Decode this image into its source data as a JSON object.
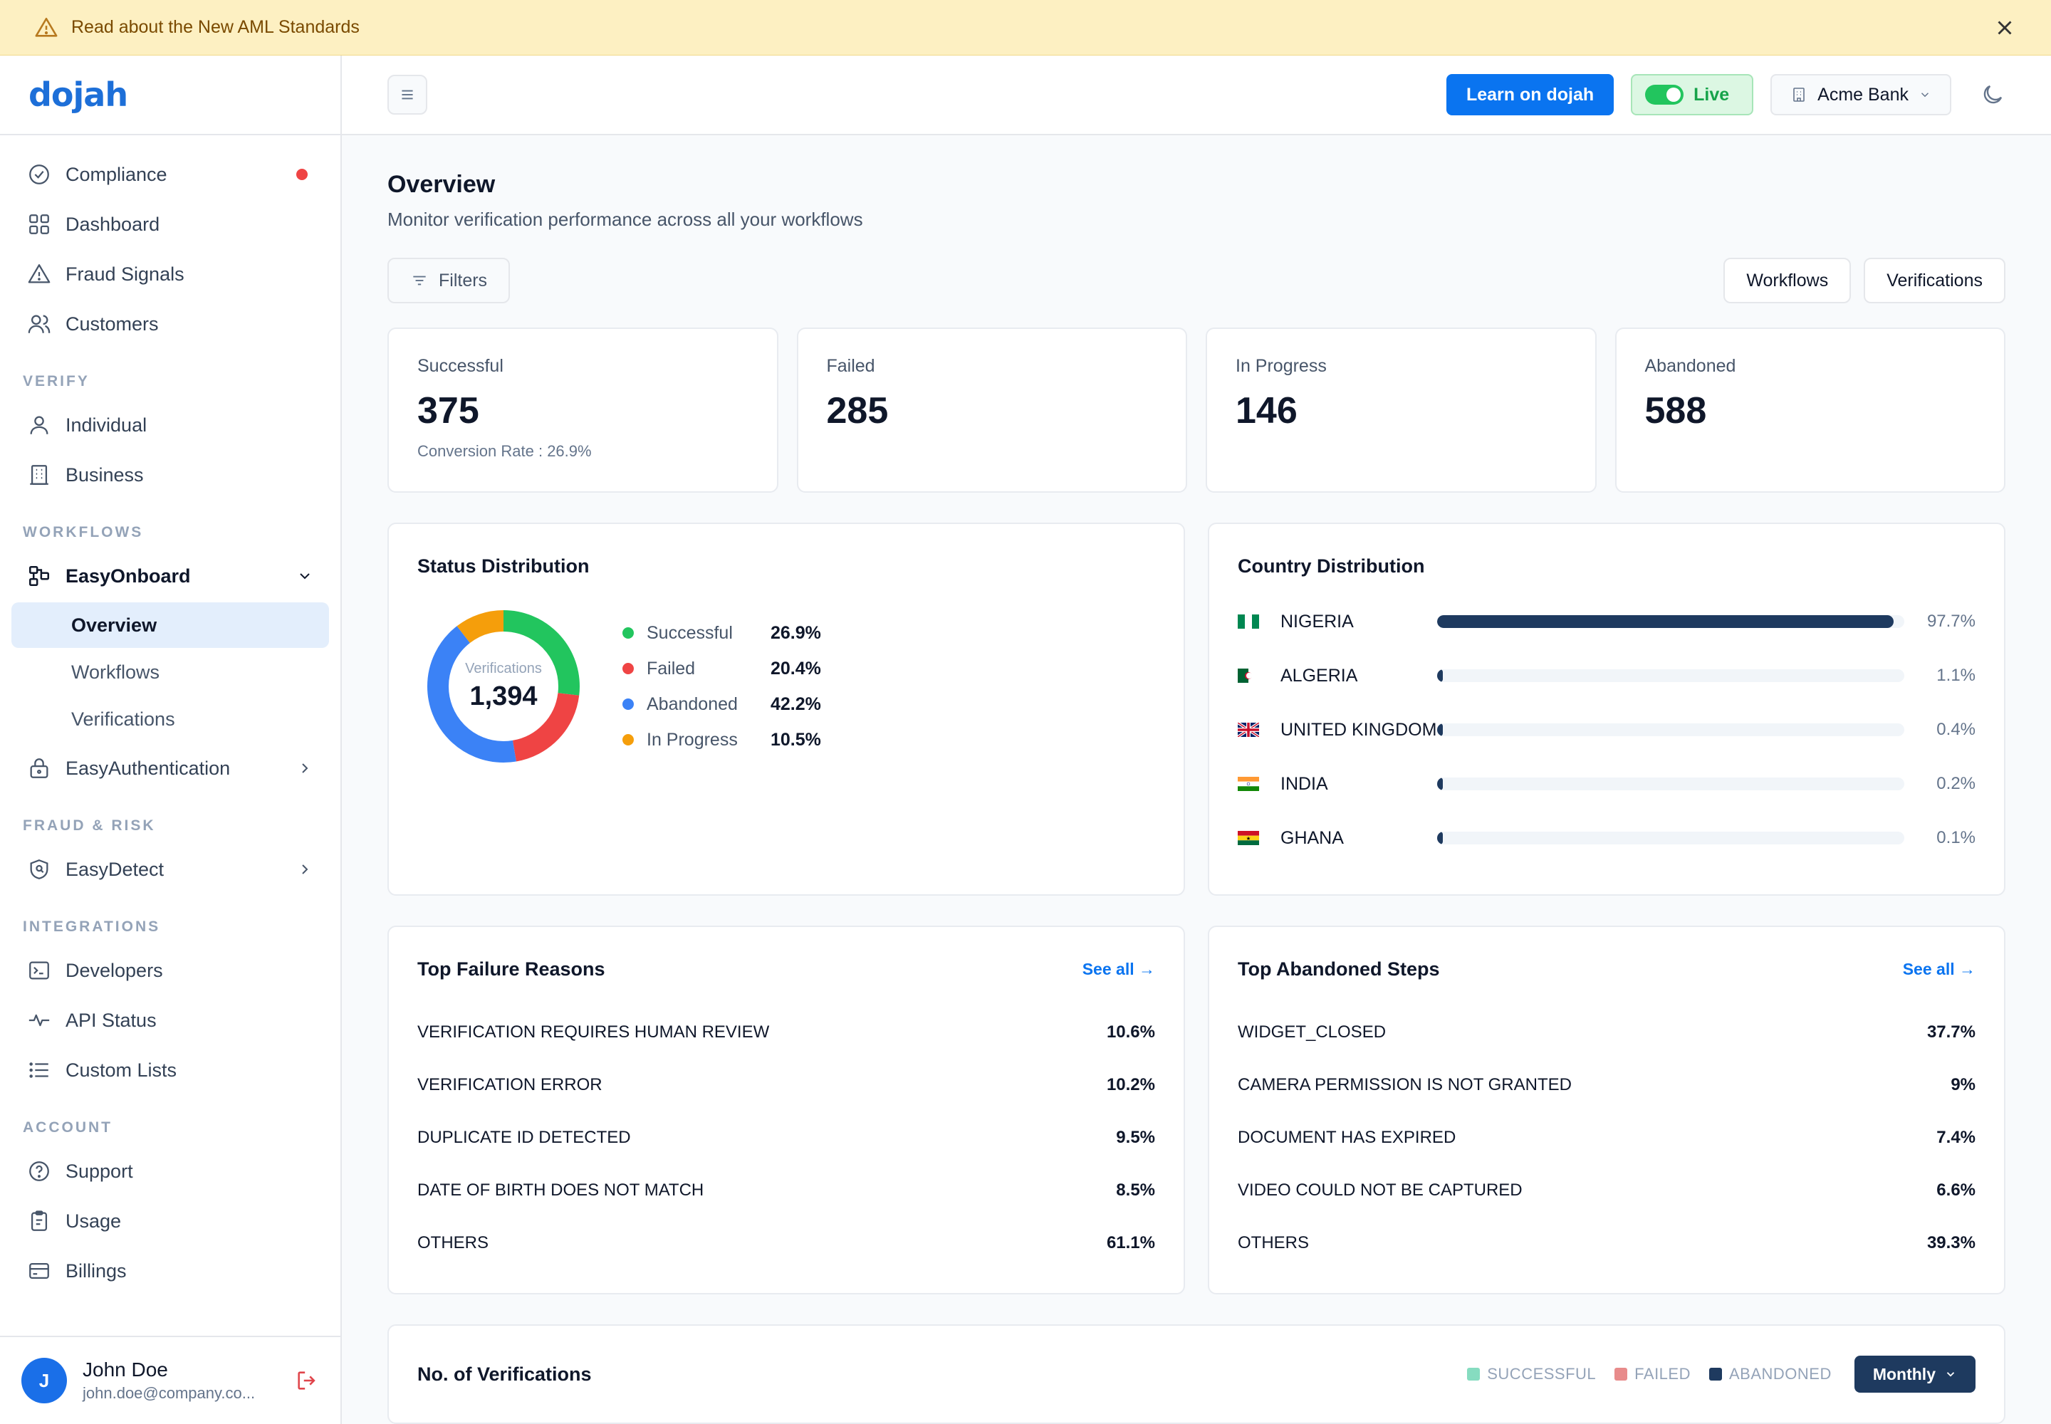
{
  "banner": {
    "text": "Read about the New AML Standards"
  },
  "logo": "dojah",
  "sidebar": {
    "main_items": [
      {
        "label": "Compliance",
        "icon": "check-circle-icon",
        "has_dot": true
      },
      {
        "label": "Dashboard",
        "icon": "grid-icon"
      },
      {
        "label": "Fraud Signals",
        "icon": "warning-icon"
      },
      {
        "label": "Customers",
        "icon": "users-icon"
      }
    ],
    "verify_label": "VERIFY",
    "verify_items": [
      {
        "label": "Individual",
        "icon": "user-icon"
      },
      {
        "label": "Business",
        "icon": "building-icon"
      }
    ],
    "workflows_label": "WORKFLOWS",
    "easyonboard": "EasyOnboard",
    "easyonboard_sub": [
      "Overview",
      "Workflows",
      "Verifications"
    ],
    "easyauth": "EasyAuthentication",
    "fraud_label": "FRAUD & RISK",
    "easydetect": "EasyDetect",
    "integrations_label": "INTEGRATIONS",
    "integration_items": [
      {
        "label": "Developers",
        "icon": "terminal-icon"
      },
      {
        "label": "API Status",
        "icon": "pulse-icon"
      },
      {
        "label": "Custom Lists",
        "icon": "list-icon"
      }
    ],
    "account_label": "ACCOUNT",
    "account_items": [
      {
        "label": "Support",
        "icon": "help-icon"
      },
      {
        "label": "Usage",
        "icon": "clipboard-icon"
      },
      {
        "label": "Billings",
        "icon": "card-icon"
      }
    ],
    "user": {
      "initial": "J",
      "name": "John Doe",
      "email": "john.doe@company.co..."
    }
  },
  "topbar": {
    "learn": "Learn on dojah",
    "live": "Live",
    "org": "Acme Bank"
  },
  "page": {
    "title": "Overview",
    "subtitle": "Monitor verification performance across all your workflows",
    "filters": "Filters",
    "tab_workflows": "Workflows",
    "tab_verifications": "Verifications"
  },
  "stats": [
    {
      "label": "Successful",
      "value": "375",
      "note": "Conversion Rate : 26.9%"
    },
    {
      "label": "Failed",
      "value": "285",
      "note": ""
    },
    {
      "label": "In Progress",
      "value": "146",
      "note": ""
    },
    {
      "label": "Abandoned",
      "value": "588",
      "note": ""
    }
  ],
  "status_distribution": {
    "title": "Status Distribution",
    "center_label": "Verifications",
    "center_value": "1,394",
    "items": [
      {
        "name": "Successful",
        "pct": "26.9%",
        "value": 26.9,
        "color": "#22c55e"
      },
      {
        "name": "Failed",
        "pct": "20.4%",
        "value": 20.4,
        "color": "#ef4444"
      },
      {
        "name": "Abandoned",
        "pct": "42.2%",
        "value": 42.2,
        "color": "#3b82f6"
      },
      {
        "name": "In Progress",
        "pct": "10.5%",
        "value": 10.5,
        "color": "#f59e0b"
      }
    ]
  },
  "country_distribution": {
    "title": "Country Distribution",
    "items": [
      {
        "name": "NIGERIA",
        "pct": "97.7%",
        "value": 97.7,
        "flag": "ng"
      },
      {
        "name": "ALGERIA",
        "pct": "1.1%",
        "value": 1.1,
        "flag": "dz"
      },
      {
        "name": "UNITED KINGDOM",
        "pct": "0.4%",
        "value": 0.4,
        "flag": "gb"
      },
      {
        "name": "INDIA",
        "pct": "0.2%",
        "value": 0.2,
        "flag": "in"
      },
      {
        "name": "GHANA",
        "pct": "0.1%",
        "value": 0.1,
        "flag": "gh"
      }
    ]
  },
  "failure_reasons": {
    "title": "Top Failure Reasons",
    "see_all": "See all →",
    "items": [
      {
        "label": "VERIFICATION REQUIRES HUMAN REVIEW",
        "value": "10.6%"
      },
      {
        "label": "VERIFICATION ERROR",
        "value": "10.2%"
      },
      {
        "label": "DUPLICATE ID DETECTED",
        "value": "9.5%"
      },
      {
        "label": "DATE OF BIRTH DOES NOT MATCH",
        "value": "8.5%"
      },
      {
        "label": "OTHERS",
        "value": "61.1%"
      }
    ]
  },
  "abandoned_steps": {
    "title": "Top Abandoned Steps",
    "see_all": "See all →",
    "items": [
      {
        "label": "WIDGET_CLOSED",
        "value": "37.7%"
      },
      {
        "label": "CAMERA PERMISSION IS NOT GRANTED",
        "value": "9%"
      },
      {
        "label": "DOCUMENT HAS EXPIRED",
        "value": "7.4%"
      },
      {
        "label": "VIDEO COULD NOT BE CAPTURED",
        "value": "6.6%"
      },
      {
        "label": "OTHERS",
        "value": "39.3%"
      }
    ]
  },
  "verifications_chart": {
    "title": "No. of Verifications",
    "legend": [
      {
        "label": "SUCCESSFUL",
        "color": "#86dcc0"
      },
      {
        "label": "FAILED",
        "color": "#e88b8b"
      },
      {
        "label": "ABANDONED",
        "color": "#1e3a5f"
      }
    ],
    "period": "Monthly"
  }
}
